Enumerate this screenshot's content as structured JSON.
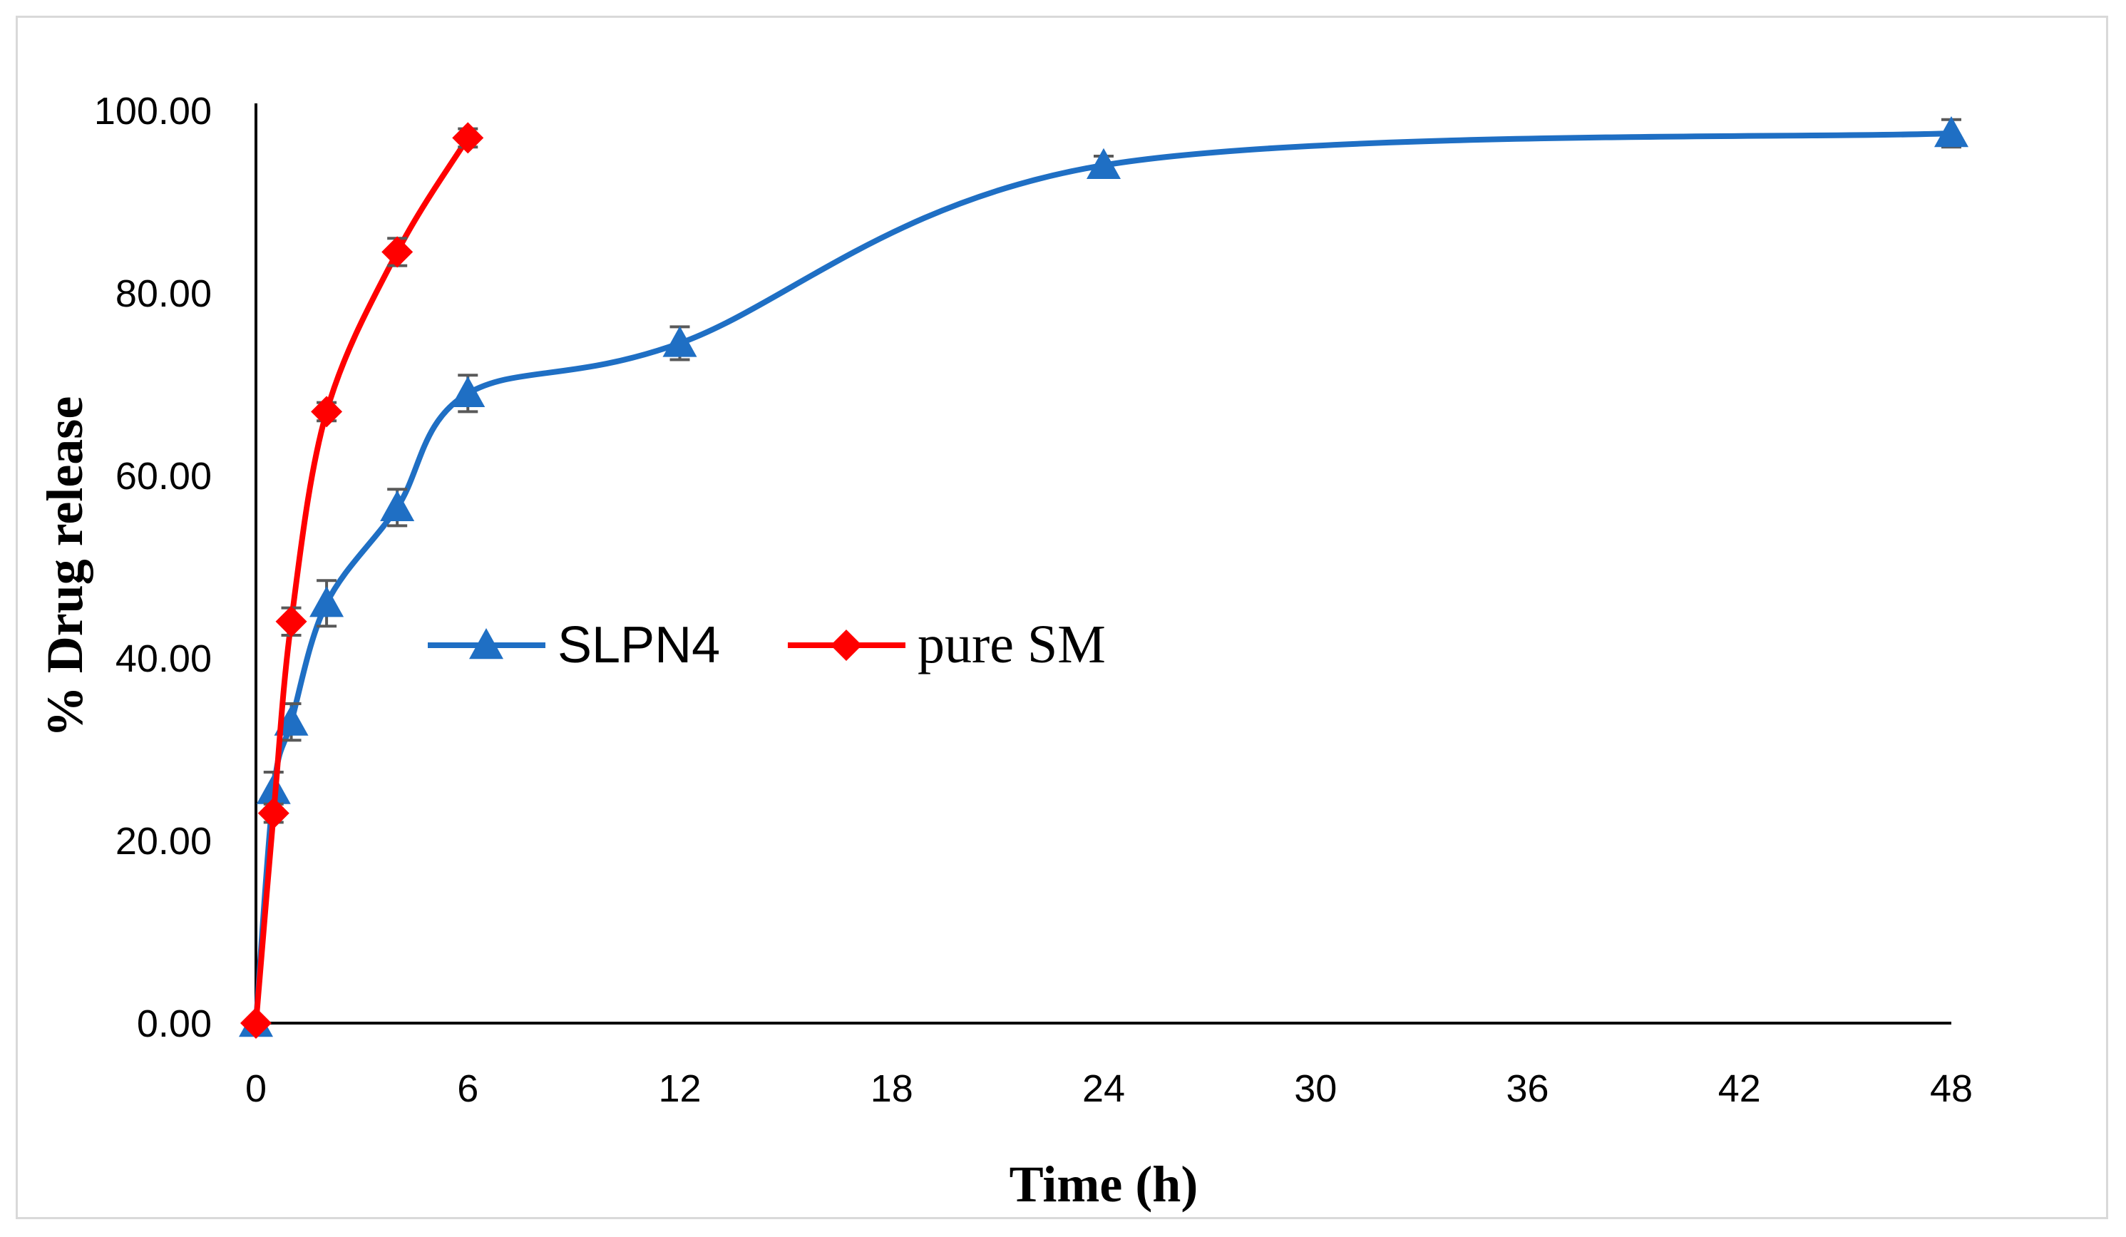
{
  "chart_data": {
    "type": "line",
    "title": "",
    "xlabel": "Time (h)",
    "ylabel": "% Drug release",
    "xlim": [
      0,
      48
    ],
    "ylim": [
      0,
      100
    ],
    "x_ticks": [
      0,
      6,
      12,
      18,
      24,
      30,
      36,
      42,
      48
    ],
    "x_tick_labels": [
      "0",
      "6",
      "12",
      "18",
      "24",
      "30",
      "36",
      "42",
      "48"
    ],
    "y_ticks": [
      0,
      20,
      40,
      60,
      80,
      100
    ],
    "y_tick_labels": [
      "0.00",
      "20.00",
      "40.00",
      "60.00",
      "80.00",
      "100.00"
    ],
    "grid": false,
    "legend_position": "center-left",
    "series": [
      {
        "name": "SLPN4",
        "color": "#1f6fc4",
        "marker": "triangle",
        "x": [
          0,
          0.5,
          1,
          2,
          4,
          6,
          12,
          24,
          48
        ],
        "values": [
          0,
          25.5,
          33,
          46,
          56.5,
          69,
          74.5,
          94,
          97.5
        ],
        "errors": [
          0,
          2.0,
          2.0,
          2.5,
          2.0,
          2.0,
          1.8,
          1.0,
          1.5
        ]
      },
      {
        "name": "pure SM",
        "color": "#ff0000",
        "marker": "diamond",
        "x": [
          0,
          0.5,
          1,
          2,
          4,
          6
        ],
        "values": [
          0,
          23,
          44,
          67,
          84.5,
          97
        ],
        "errors": [
          0,
          1.0,
          1.5,
          1.0,
          1.5,
          1.0
        ]
      }
    ]
  }
}
